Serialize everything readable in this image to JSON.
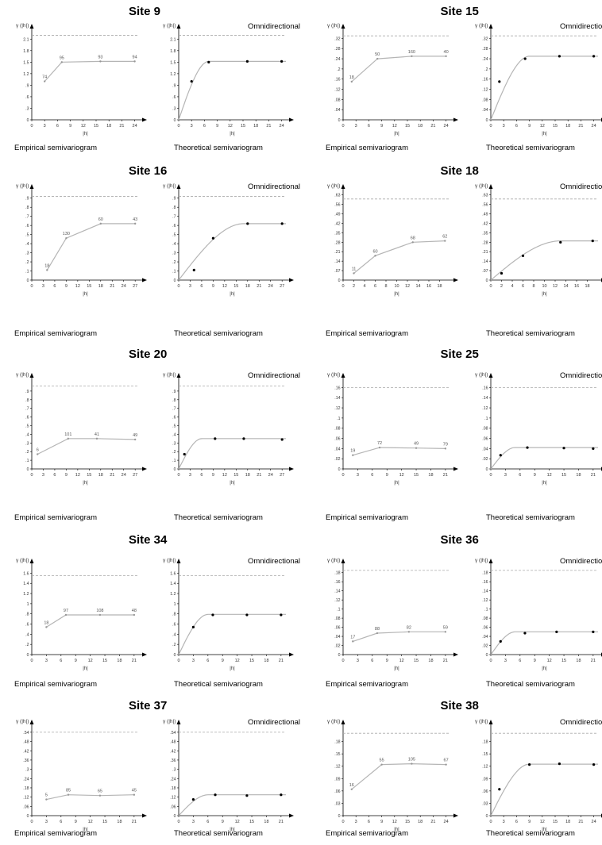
{
  "labels": {
    "empirical": "Empirical semivariogram",
    "theoretical": "Theoretical semivariogram",
    "omnidirectional": "Omnidirectional",
    "ylabel": "γ (|h|)",
    "xlabel": "|h|"
  },
  "colors": {
    "curve": "#b5b5b5",
    "sill_line": "#aaaaaa",
    "axis": "#000000",
    "point_theoretical": "#000000",
    "point_empirical": "#999999",
    "tick_label": "#333333"
  },
  "chart_data": [
    {
      "site": "Site 9",
      "type": "line",
      "xlabel": "|h|",
      "ylabel": "γ (|h|)",
      "xlim": [
        0,
        25
      ],
      "ylim": [
        0,
        2.25
      ],
      "xticks": [
        0,
        3,
        6,
        9,
        12,
        15,
        18,
        21,
        24
      ],
      "yticks": [
        0,
        0.3,
        0.6,
        0.9,
        1.2,
        1.5,
        1.8,
        2.1
      ],
      "sill_line": 2.2,
      "model": {
        "nugget": 0,
        "sill": 1.52,
        "range": 7
      },
      "points": [
        {
          "x": 3,
          "y": 1.0,
          "n": 74
        },
        {
          "x": 7,
          "y": 1.5,
          "n": 95
        },
        {
          "x": 16,
          "y": 1.52,
          "n": 93
        },
        {
          "x": 24,
          "y": 1.52,
          "n": 94
        }
      ]
    },
    {
      "site": "Site 15",
      "type": "line",
      "xlabel": "|h|",
      "ylabel": "γ (|h|)",
      "xlim": [
        0,
        25
      ],
      "ylim": [
        0,
        0.34
      ],
      "xticks": [
        0,
        3,
        6,
        9,
        12,
        15,
        18,
        21,
        24
      ],
      "yticks": [
        0,
        0.04,
        0.08,
        0.12,
        0.16,
        0.2,
        0.24,
        0.28,
        0.32
      ],
      "sill_line": 0.33,
      "model": {
        "nugget": 0,
        "sill": 0.25,
        "range": 9
      },
      "points": [
        {
          "x": 2,
          "y": 0.15,
          "n": 18
        },
        {
          "x": 8,
          "y": 0.24,
          "n": 50
        },
        {
          "x": 16,
          "y": 0.25,
          "n": 160
        },
        {
          "x": 24,
          "y": 0.25,
          "n": 40
        }
      ]
    },
    {
      "site": "Site 16",
      "type": "line",
      "xlabel": "|h|",
      "ylabel": "γ (|h|)",
      "xlim": [
        0,
        28
      ],
      "ylim": [
        0,
        0.95
      ],
      "xticks": [
        0,
        3,
        6,
        9,
        12,
        15,
        18,
        21,
        24,
        27
      ],
      "yticks": [
        0,
        0.1,
        0.2,
        0.3,
        0.4,
        0.5,
        0.6,
        0.7,
        0.8,
        0.9
      ],
      "sill_line": 0.92,
      "model": {
        "nugget": 0,
        "sill": 0.62,
        "range": 17
      },
      "points": [
        {
          "x": 4,
          "y": 0.11,
          "n": 18
        },
        {
          "x": 9,
          "y": 0.46,
          "n": 130
        },
        {
          "x": 18,
          "y": 0.62,
          "n": 60
        },
        {
          "x": 27,
          "y": 0.62,
          "n": 43
        }
      ]
    },
    {
      "site": "Site 18",
      "type": "line",
      "xlabel": "|h|",
      "ylabel": "γ (|h|)",
      "xlim": [
        0,
        20
      ],
      "ylim": [
        0,
        0.64
      ],
      "xticks": [
        0,
        2,
        4,
        6,
        8,
        10,
        12,
        14,
        16,
        18
      ],
      "yticks": [
        0,
        0.07,
        0.14,
        0.21,
        0.28,
        0.35,
        0.42,
        0.49,
        0.56,
        0.63
      ],
      "sill_line": 0.6,
      "model": {
        "nugget": 0,
        "sill": 0.29,
        "range": 13
      },
      "points": [
        {
          "x": 2,
          "y": 0.05,
          "n": 11
        },
        {
          "x": 6,
          "y": 0.18,
          "n": 60
        },
        {
          "x": 13,
          "y": 0.28,
          "n": 68
        },
        {
          "x": 19,
          "y": 0.29,
          "n": 62
        }
      ]
    },
    {
      "site": "Site 20",
      "type": "line",
      "xlabel": "|h|",
      "ylabel": "γ (|h|)",
      "xlim": [
        0,
        28
      ],
      "ylim": [
        0,
        1.0
      ],
      "xticks": [
        0,
        3,
        6,
        9,
        12,
        15,
        18,
        21,
        24,
        27
      ],
      "yticks": [
        0,
        0.1,
        0.2,
        0.3,
        0.4,
        0.5,
        0.6,
        0.7,
        0.8,
        0.9
      ],
      "sill_line": 0.96,
      "model": {
        "nugget": 0,
        "sill": 0.35,
        "range": 6
      },
      "points": [
        {
          "x": 1.5,
          "y": 0.17,
          "n": 6
        },
        {
          "x": 9.5,
          "y": 0.35,
          "n": 101
        },
        {
          "x": 17,
          "y": 0.35,
          "n": 41
        },
        {
          "x": 27,
          "y": 0.34,
          "n": 49
        }
      ]
    },
    {
      "site": "Site 25",
      "type": "line",
      "xlabel": "|h|",
      "ylabel": "γ (|h|)",
      "xlim": [
        0,
        22
      ],
      "ylim": [
        0,
        0.17
      ],
      "xticks": [
        0,
        3,
        6,
        9,
        12,
        15,
        18,
        21
      ],
      "yticks": [
        0,
        0.02,
        0.04,
        0.06,
        0.08,
        0.1,
        0.12,
        0.14,
        0.16
      ],
      "sill_line": 0.16,
      "model": {
        "nugget": 0,
        "sill": 0.042,
        "range": 5
      },
      "points": [
        {
          "x": 2,
          "y": 0.027,
          "n": 19
        },
        {
          "x": 7.5,
          "y": 0.042,
          "n": 72
        },
        {
          "x": 15,
          "y": 0.041,
          "n": 49
        },
        {
          "x": 21,
          "y": 0.04,
          "n": 79
        }
      ]
    },
    {
      "site": "Site 34",
      "type": "line",
      "xlabel": "|h|",
      "ylabel": "γ (|h|)",
      "xlim": [
        0,
        22
      ],
      "ylim": [
        0,
        1.7
      ],
      "xticks": [
        0,
        3,
        6,
        9,
        12,
        15,
        18,
        21
      ],
      "yticks": [
        0,
        0.2,
        0.4,
        0.6,
        0.8,
        1.0,
        1.2,
        1.4,
        1.6
      ],
      "sill_line": 1.55,
      "model": {
        "nugget": 0,
        "sill": 0.79,
        "range": 6
      },
      "points": [
        {
          "x": 3,
          "y": 0.54,
          "n": 18
        },
        {
          "x": 7,
          "y": 0.78,
          "n": 97
        },
        {
          "x": 14,
          "y": 0.78,
          "n": 108
        },
        {
          "x": 21,
          "y": 0.78,
          "n": 48
        }
      ]
    },
    {
      "site": "Site 36",
      "type": "line",
      "xlabel": "|h|",
      "ylabel": "γ (|h|)",
      "xlim": [
        0,
        22
      ],
      "ylim": [
        0,
        0.19
      ],
      "xticks": [
        0,
        3,
        6,
        9,
        12,
        15,
        18,
        21
      ],
      "yticks": [
        0,
        0.02,
        0.04,
        0.06,
        0.08,
        0.1,
        0.12,
        0.14,
        0.16,
        0.18
      ],
      "sill_line": 0.185,
      "model": {
        "nugget": 0,
        "sill": 0.05,
        "range": 5
      },
      "points": [
        {
          "x": 2,
          "y": 0.029,
          "n": 17
        },
        {
          "x": 7,
          "y": 0.047,
          "n": 88
        },
        {
          "x": 13.5,
          "y": 0.05,
          "n": 82
        },
        {
          "x": 21,
          "y": 0.05,
          "n": 59
        }
      ]
    },
    {
      "site": "Site 37",
      "type": "line",
      "xlabel": "|h|",
      "ylabel": "γ (|h|)",
      "xlim": [
        0,
        22
      ],
      "ylim": [
        0,
        0.56
      ],
      "xticks": [
        0,
        3,
        6,
        9,
        12,
        15,
        18,
        21
      ],
      "yticks": [
        0,
        0.06,
        0.12,
        0.18,
        0.24,
        0.3,
        0.36,
        0.42,
        0.48,
        0.54
      ],
      "sill_line": 0.54,
      "model": {
        "nugget": 0,
        "sill": 0.135,
        "range": 6
      },
      "points": [
        {
          "x": 3,
          "y": 0.105,
          "n": 5
        },
        {
          "x": 7.5,
          "y": 0.135,
          "n": 85
        },
        {
          "x": 14,
          "y": 0.13,
          "n": 65
        },
        {
          "x": 21,
          "y": 0.135,
          "n": 45
        }
      ]
    },
    {
      "site": "Site 38",
      "type": "line",
      "xlabel": "|h|",
      "ylabel": "γ (|h|)",
      "xlim": [
        0,
        25
      ],
      "ylim": [
        0,
        0.21
      ],
      "xticks": [
        0,
        3,
        6,
        9,
        12,
        15,
        18,
        21,
        24
      ],
      "yticks": [
        0,
        0.03,
        0.06,
        0.09,
        0.12,
        0.15,
        0.18
      ],
      "sill_line": 0.2,
      "model": {
        "nugget": 0,
        "sill": 0.125,
        "range": 9
      },
      "points": [
        {
          "x": 2,
          "y": 0.064,
          "n": 16
        },
        {
          "x": 9,
          "y": 0.124,
          "n": 55
        },
        {
          "x": 16,
          "y": 0.126,
          "n": 105
        },
        {
          "x": 24,
          "y": 0.124,
          "n": 67
        }
      ]
    }
  ]
}
